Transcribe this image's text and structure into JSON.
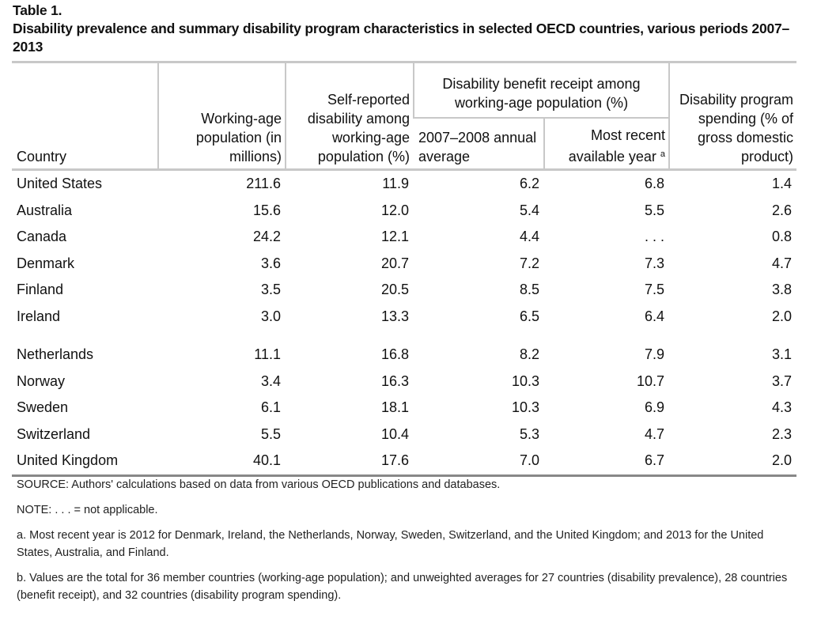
{
  "table": {
    "label": "Table 1.",
    "title": "Disability prevalence and summary disability program characteristics in selected OECD countries, various periods 2007–2013",
    "headers": {
      "country": "Country",
      "population": "Working-age population (in millions)",
      "self_reported": "Self-reported disability among working-age population (%)",
      "benefit_group": "Disability benefit receipt among working-age population (%)",
      "benefit_2007": "2007–2008 annual average",
      "benefit_recent": "Most recent available year",
      "benefit_recent_note": "a",
      "spending": "Disability program spending (% of gross domestic product)"
    },
    "rows": [
      [
        "United States",
        "211.6",
        "11.9",
        "6.2",
        "6.8",
        "1.4"
      ],
      [
        "Australia",
        "15.6",
        "12.0",
        "5.4",
        "5.5",
        "2.6"
      ],
      [
        "Canada",
        "24.2",
        "12.1",
        "4.4",
        ". . .",
        "0.8"
      ],
      [
        "Denmark",
        "3.6",
        "20.7",
        "7.2",
        "7.3",
        "4.7"
      ],
      [
        "Finland",
        "3.5",
        "20.5",
        "8.5",
        "7.5",
        "3.8"
      ],
      [
        "Ireland",
        "3.0",
        "13.3",
        "6.5",
        "6.4",
        "2.0"
      ],
      [
        "Netherlands",
        "11.1",
        "16.8",
        "8.2",
        "7.9",
        "3.1"
      ],
      [
        "Norway",
        "3.4",
        "16.3",
        "10.3",
        "10.7",
        "3.7"
      ],
      [
        "Sweden",
        "6.1",
        "18.1",
        "10.3",
        "6.9",
        "4.3"
      ],
      [
        "Switzerland",
        "5.5",
        "10.4",
        "5.3",
        "4.7",
        "2.3"
      ],
      [
        "United Kingdom",
        "40.1",
        "17.6",
        "7.0",
        "6.7",
        "2.0"
      ]
    ]
  },
  "notes": {
    "source": "SOURCE: Authors' calculations based on data from various OECD publications and databases.",
    "note": "NOTE: . . . = not applicable.",
    "a": "a. Most recent year is 2012 for Denmark, Ireland, the Netherlands, Norway, Sweden, Switzerland, and the United Kingdom; and 2013 for the United States, Australia, and Finland.",
    "b": "b. Values are the total for 36 member countries (working-age population); and unweighted averages for 27 countries (disability prevalence), 28 countries (benefit receipt), and 32 countries (disability program spending)."
  }
}
